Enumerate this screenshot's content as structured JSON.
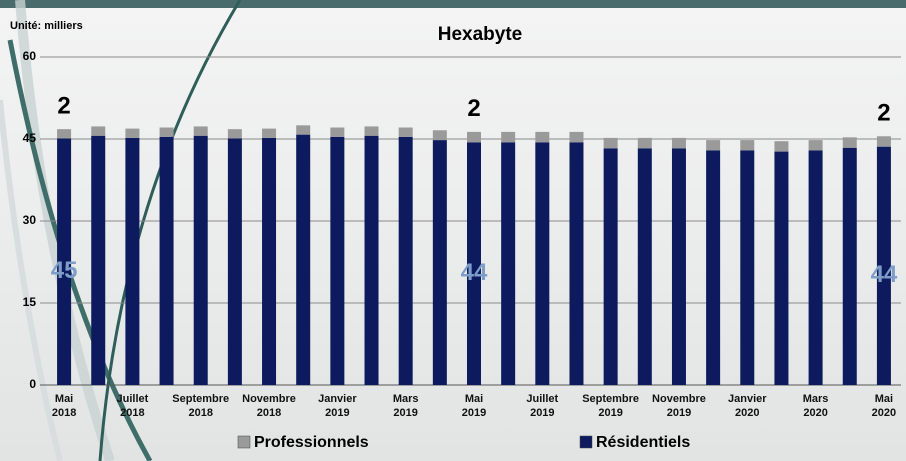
{
  "chart_data": {
    "type": "stacked_bar",
    "title": "Hexabyte",
    "unit_label": "Unité: milliers",
    "categories": [
      "Mai 2018",
      null,
      "Juillet 2018",
      null,
      "Septembre 2018",
      null,
      "Novembre 2018",
      null,
      "Janvier 2019",
      null,
      "Mars 2019",
      null,
      "Mai 2019",
      null,
      "Juillet 2019",
      null,
      "Septembre 2019",
      null,
      "Novembre 2019",
      null,
      "Janvier 2020",
      null,
      "Mars 2020",
      null,
      "Mai 2020"
    ],
    "series": [
      {
        "name": "Résidentiels",
        "color": "#0d1b5e",
        "values": [
          45.1,
          45.6,
          45.2,
          45.4,
          45.6,
          45.1,
          45.2,
          45.8,
          45.4,
          45.6,
          45.4,
          44.8,
          44.4,
          44.4,
          44.4,
          44.4,
          43.3,
          43.3,
          43.3,
          42.9,
          42.9,
          42.7,
          42.9,
          43.4,
          43.6
        ],
        "value_labels": [
          "45",
          null,
          null,
          null,
          null,
          null,
          null,
          null,
          null,
          null,
          null,
          null,
          "44",
          null,
          null,
          null,
          null,
          null,
          null,
          null,
          null,
          null,
          null,
          null,
          "44"
        ]
      },
      {
        "name": "Professionnels",
        "color": "#9a9a9a",
        "values": [
          1.7,
          1.7,
          1.7,
          1.7,
          1.7,
          1.7,
          1.7,
          1.7,
          1.7,
          1.7,
          1.7,
          1.8,
          1.9,
          1.9,
          1.9,
          1.9,
          1.9,
          1.9,
          1.9,
          1.9,
          1.9,
          1.9,
          1.9,
          1.9,
          1.9
        ],
        "value_labels": [
          "2",
          null,
          null,
          null,
          null,
          null,
          null,
          null,
          null,
          null,
          null,
          null,
          "2",
          null,
          null,
          null,
          null,
          null,
          null,
          null,
          null,
          null,
          null,
          null,
          "2"
        ]
      }
    ],
    "ylim": [
      0,
      60
    ],
    "yticks": [
      0,
      15,
      30,
      45,
      60
    ],
    "grid": true
  }
}
